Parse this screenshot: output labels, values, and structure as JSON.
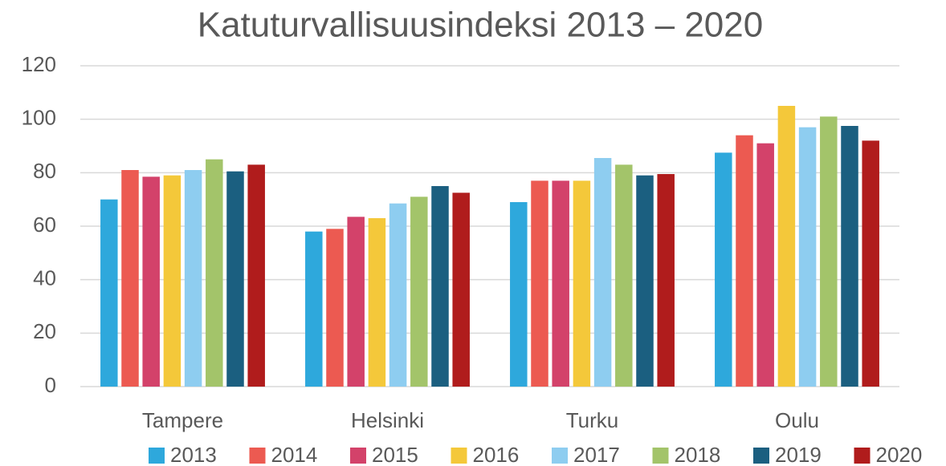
{
  "chart_data": {
    "type": "bar",
    "title": "Katuturvallisuusindeksi 2013 – 2020",
    "categories": [
      "Tampere",
      "Helsinki",
      "Turku",
      "Oulu"
    ],
    "series": [
      {
        "name": "2013",
        "color": "#2ea8dc",
        "values": [
          70,
          58,
          69,
          87.5
        ]
      },
      {
        "name": "2014",
        "color": "#ec5a51",
        "values": [
          81,
          59,
          77,
          94
        ]
      },
      {
        "name": "2015",
        "color": "#d3426a",
        "values": [
          78.5,
          63.5,
          77,
          91
        ]
      },
      {
        "name": "2016",
        "color": "#f4c83a",
        "values": [
          79,
          63,
          77,
          105
        ]
      },
      {
        "name": "2017",
        "color": "#8ecdf0",
        "values": [
          81,
          68.5,
          85.5,
          97
        ]
      },
      {
        "name": "2018",
        "color": "#a3c46a",
        "values": [
          85,
          71,
          83,
          101
        ]
      },
      {
        "name": "2019",
        "color": "#1b5f80",
        "values": [
          80.5,
          75,
          79,
          97.5
        ]
      },
      {
        "name": "2020",
        "color": "#b01c1c",
        "values": [
          83,
          72.5,
          79.5,
          92
        ]
      }
    ],
    "ylim": [
      0,
      120
    ],
    "yticks": [
      0,
      20,
      40,
      60,
      80,
      100,
      120
    ],
    "grid": true,
    "legend": "bottom"
  }
}
